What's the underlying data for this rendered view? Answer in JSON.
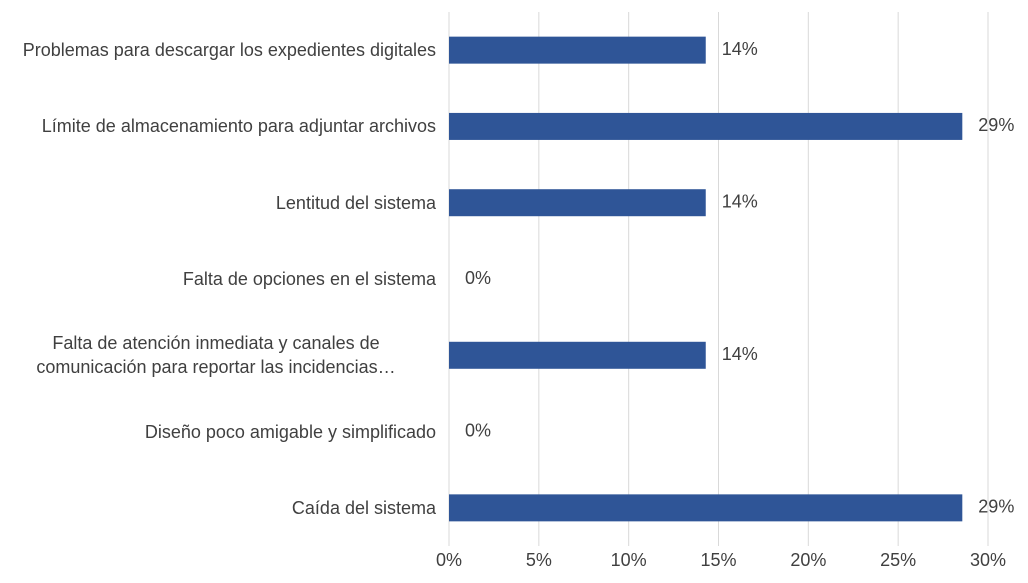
{
  "chart_data": {
    "type": "bar",
    "orientation": "horizontal",
    "categories": [
      "Problemas para descargar los expedientes digitales",
      "Límite de almacenamiento para adjuntar archivos",
      "Lentitud del sistema",
      "Falta de opciones en el sistema",
      "Falta de atención inmediata y canales de comunicación para reportar las incidencias…",
      "Diseño poco amigable y simplificado",
      "Caída del sistema"
    ],
    "values": [
      14.29,
      28.57,
      14.29,
      0,
      14.29,
      0,
      28.57
    ],
    "value_labels": [
      "14%",
      "29%",
      "14%",
      "0%",
      "14%",
      "0%",
      "29%"
    ],
    "color": "#2f5597",
    "xlim": [
      0,
      30
    ],
    "xticks": [
      {
        "value": 0,
        "label": "0%"
      },
      {
        "value": 5,
        "label": "5%"
      },
      {
        "value": 10,
        "label": "10%"
      },
      {
        "value": 15,
        "label": "15%"
      },
      {
        "value": 20,
        "label": "20%"
      },
      {
        "value": 25,
        "label": "25%"
      },
      {
        "value": 30,
        "label": "30%"
      }
    ],
    "grid": true
  }
}
